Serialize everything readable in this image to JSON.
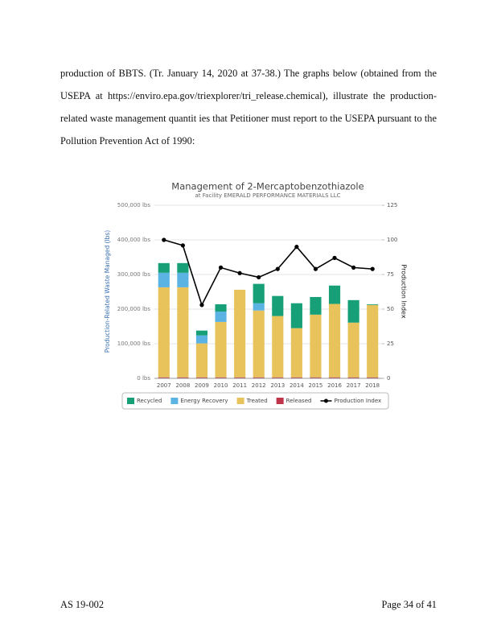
{
  "paragraph": [
    "production of BBTS. (Tr. January 14, 2020 at 37-38.) The graphs below (obtained from the",
    "USEPA at https://enviro.epa.gov/triexplorer/tri_release.chemical), illustrate the production-",
    "related waste management quantit ies that Petitioner must report to the USEPA pursuant to the",
    "Pollution Prevention Act of 1990:"
  ],
  "chart_data": {
    "type": "stacked-bar-line",
    "title": "Management of 2-Mercaptobenzothiazole",
    "subtitle": "at Facility EMERALD PERFORMANCE MATERIALS LLC",
    "ylabel": "Production-Related Waste Managed (lbs)",
    "y2label": "Production Index",
    "categories": [
      "2007",
      "2008",
      "2009",
      "2010",
      "2011",
      "2012",
      "2013",
      "2014",
      "2015",
      "2016",
      "2017",
      "2018"
    ],
    "series": [
      {
        "name": "Recycled",
        "color": "#17a078",
        "values": [
          28000,
          28000,
          14000,
          21000,
          0,
          56000,
          58000,
          72000,
          51000,
          53000,
          65000,
          2000
        ]
      },
      {
        "name": "Energy Recovery",
        "color": "#5bb3e4",
        "values": [
          42000,
          42000,
          23000,
          30000,
          0,
          21000,
          0,
          0,
          0,
          0,
          0,
          0
        ]
      },
      {
        "name": "Treated",
        "color": "#e8c35c",
        "values": [
          260000,
          260000,
          98000,
          160000,
          253000,
          193000,
          177000,
          142000,
          181000,
          212000,
          158000,
          209000
        ]
      },
      {
        "name": "Released",
        "color": "#c0344a",
        "values": [
          3000,
          3000,
          3000,
          3000,
          3000,
          3000,
          3000,
          3000,
          3000,
          3000,
          3000,
          3000
        ]
      },
      {
        "name": "Production Index",
        "color": "#000000",
        "axis": "y2",
        "values": [
          100,
          96,
          53,
          80,
          76,
          73,
          79,
          95,
          79,
          87,
          80,
          79
        ]
      }
    ],
    "ylim": [
      0,
      500000
    ],
    "yticks": [
      {
        "value": 0,
        "label": "0 lbs"
      },
      {
        "value": 100000,
        "label": "100,000 lbs"
      },
      {
        "value": 200000,
        "label": "200,000 lbs"
      },
      {
        "value": 300000,
        "label": "300,000 lbs"
      },
      {
        "value": 400000,
        "label": "400,000 lbs"
      },
      {
        "value": 500000,
        "label": "500,000 lbs"
      }
    ],
    "y2lim": [
      0,
      125
    ],
    "y2ticks": [
      0,
      25,
      50,
      75,
      100,
      125
    ],
    "grid": true,
    "legend": "bottom"
  },
  "footer": {
    "left": "AS 19-002",
    "right": "Page 34 of 41"
  }
}
